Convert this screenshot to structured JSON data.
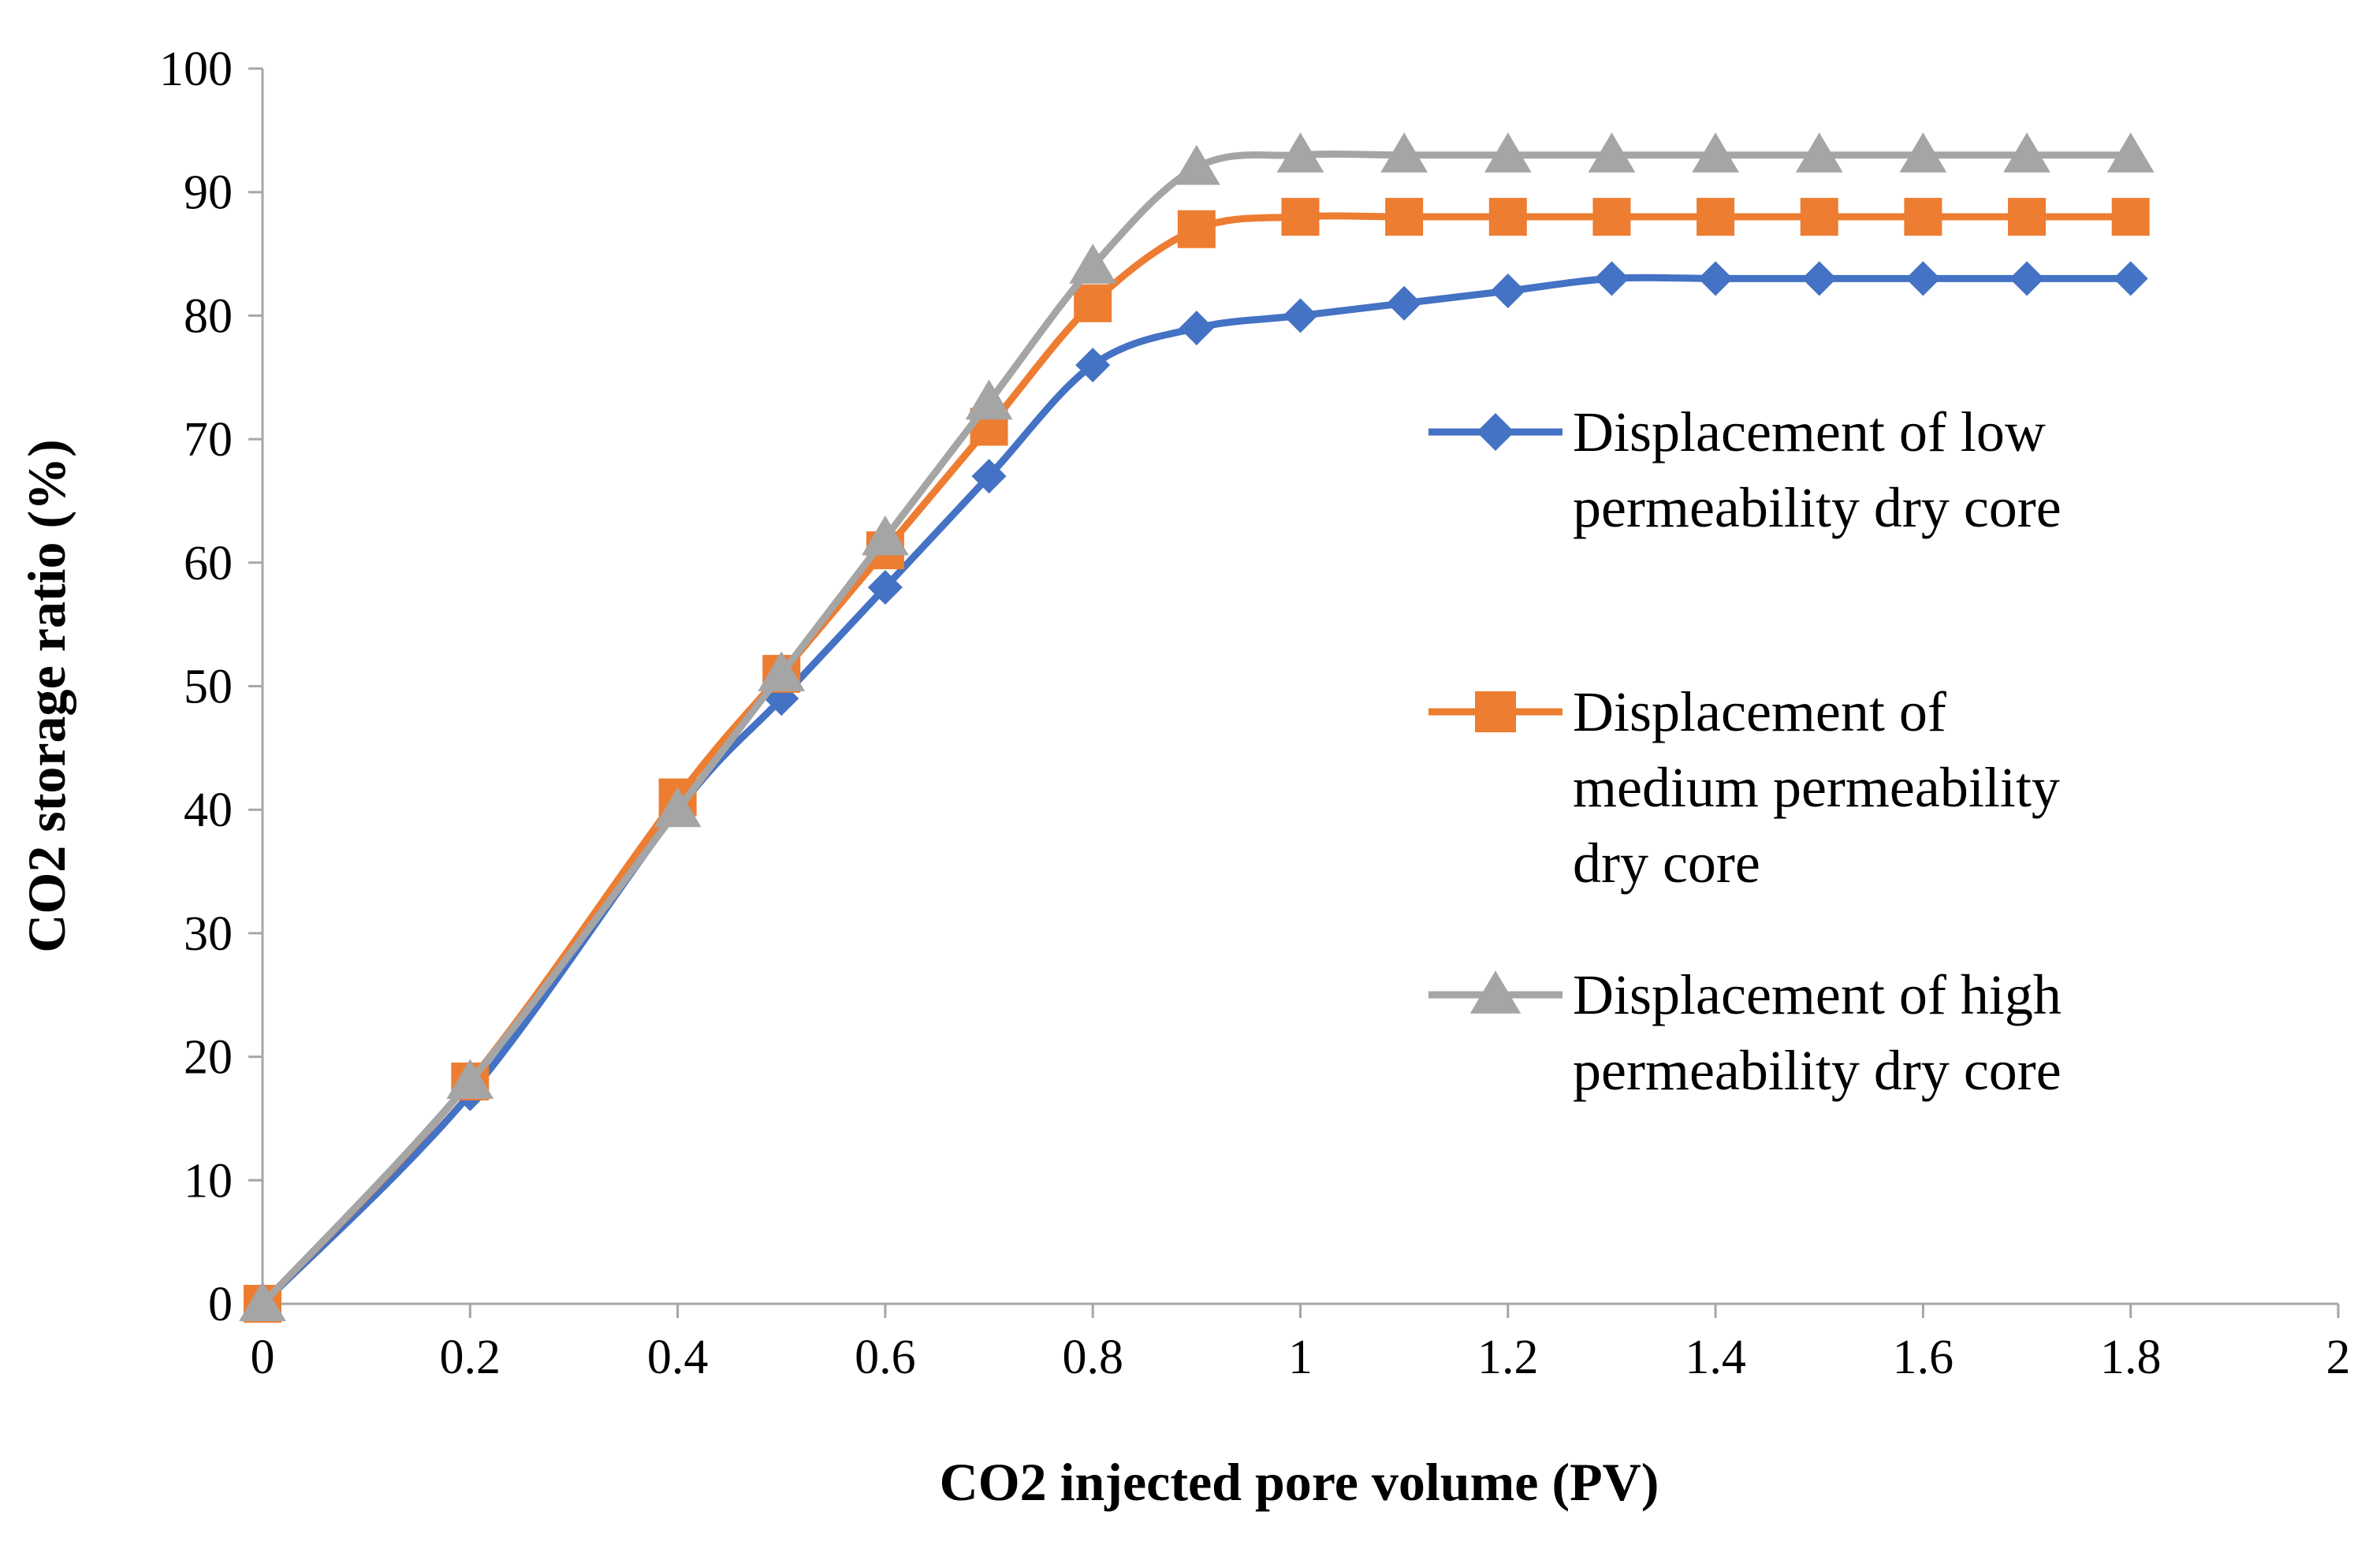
{
  "chart_data": {
    "type": "line",
    "title": "",
    "xlabel": "CO2 injected pore volume (PV)",
    "ylabel": "CO2 storage ratio (%)",
    "xlim": [
      0,
      2
    ],
    "ylim": [
      0,
      100
    ],
    "x_ticks": [
      0,
      0.2,
      0.4,
      0.6,
      0.8,
      1,
      1.2,
      1.4,
      1.6,
      1.8,
      2
    ],
    "x_tick_labels": [
      "0",
      "0.2",
      "0.4",
      "0.6",
      "0.8",
      "1",
      "1.2",
      "1.4",
      "1.6",
      "1.8",
      "2"
    ],
    "y_ticks": [
      0,
      10,
      20,
      30,
      40,
      50,
      60,
      70,
      80,
      90,
      100
    ],
    "y_tick_labels": [
      "0",
      "10",
      "20",
      "30",
      "40",
      "50",
      "60",
      "70",
      "80",
      "90",
      "100"
    ],
    "grid": false,
    "legend_position": "right",
    "x": [
      0,
      0.2,
      0.4,
      0.5,
      0.6,
      0.7,
      0.8,
      0.9,
      1.0,
      1.1,
      1.2,
      1.3,
      1.4,
      1.5,
      1.6,
      1.7,
      1.8
    ],
    "series": [
      {
        "name": "Displacement of low permeability dry core",
        "legend_lines": [
          "Displacement of low",
          "permeability dry core"
        ],
        "marker": "diamond",
        "color": "#4472c4",
        "values": [
          0,
          17,
          40,
          49,
          58,
          67,
          76,
          79,
          80,
          81,
          82,
          83,
          83,
          83,
          83,
          83,
          83
        ]
      },
      {
        "name": "Displacement of medium permeability dry core",
        "legend_lines": [
          "Displacement of",
          "medium permeability",
          "dry core"
        ],
        "marker": "square",
        "color": "#ed7d31",
        "values": [
          0,
          18,
          41,
          51,
          61,
          71,
          81,
          87,
          88,
          88,
          88,
          88,
          88,
          88,
          88,
          88,
          88
        ]
      },
      {
        "name": "Displacement of high permeability dry core",
        "legend_lines": [
          "Displacement of high",
          "permeability dry core"
        ],
        "marker": "triangle",
        "color": "#a5a5a5",
        "values": [
          0,
          18,
          40,
          51,
          62,
          73,
          84,
          92,
          93,
          93,
          93,
          93,
          93,
          93,
          93,
          93,
          93
        ]
      }
    ]
  }
}
